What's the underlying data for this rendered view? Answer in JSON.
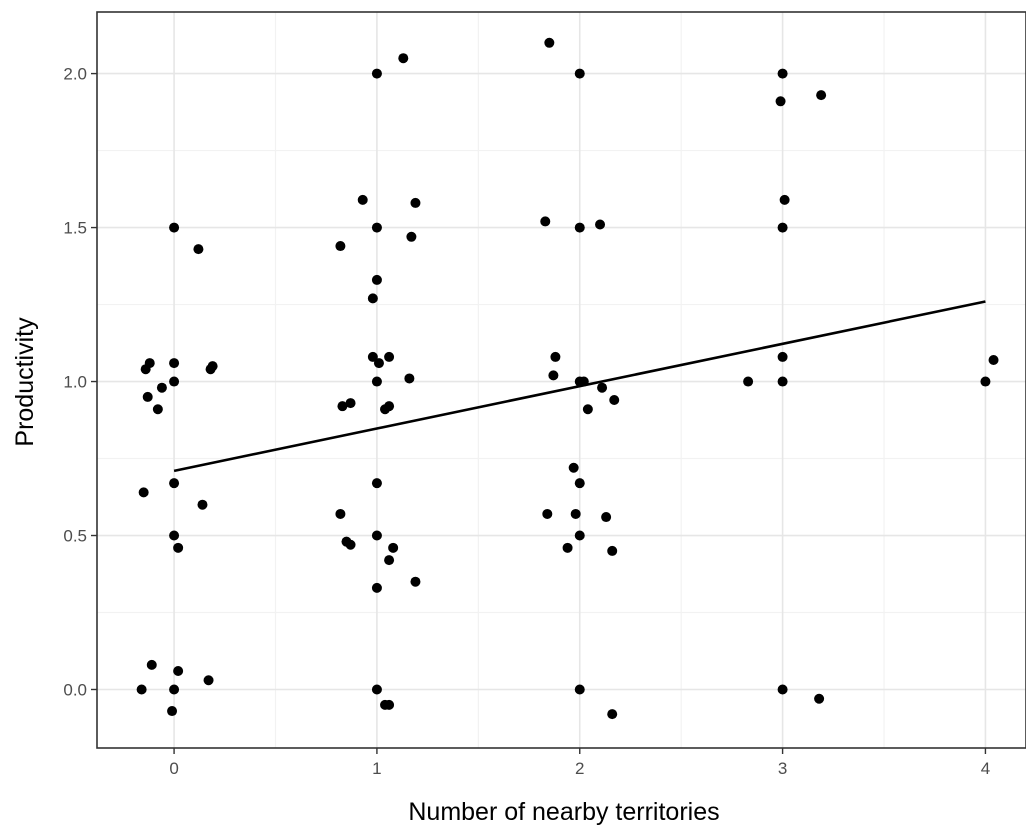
{
  "chart_data": {
    "type": "scatter",
    "title": "",
    "xlabel": "Number of nearby territories",
    "ylabel": "Productivity",
    "xlim": [
      -0.38,
      4.2
    ],
    "ylim": [
      -0.19,
      2.2
    ],
    "x_ticks": [
      0,
      1,
      2,
      3,
      4
    ],
    "x_tick_labels": [
      "0",
      "1",
      "2",
      "3",
      "4"
    ],
    "y_ticks": [
      0.0,
      0.5,
      1.0,
      1.5,
      2.0
    ],
    "y_tick_labels": [
      "0.0",
      "0.5",
      "1.0",
      "1.5",
      "2.0"
    ],
    "grid": true,
    "theme": "bw",
    "point_color": "#000000",
    "points": [
      {
        "x": -0.16,
        "y": 0.0
      },
      {
        "x": -0.15,
        "y": 0.64
      },
      {
        "x": -0.14,
        "y": 1.04
      },
      {
        "x": -0.13,
        "y": 0.95
      },
      {
        "x": -0.12,
        "y": 1.06
      },
      {
        "x": -0.11,
        "y": 0.08
      },
      {
        "x": -0.08,
        "y": 0.91
      },
      {
        "x": -0.06,
        "y": 0.98
      },
      {
        "x": 0.0,
        "y": 1.5
      },
      {
        "x": 0.0,
        "y": 1.06
      },
      {
        "x": 0.0,
        "y": 1.0
      },
      {
        "x": 0.0,
        "y": 0.67
      },
      {
        "x": 0.0,
        "y": 0.5
      },
      {
        "x": 0.0,
        "y": 0.0
      },
      {
        "x": -0.01,
        "y": -0.07
      },
      {
        "x": 0.02,
        "y": 0.46
      },
      {
        "x": 0.02,
        "y": 0.06
      },
      {
        "x": 0.12,
        "y": 1.43
      },
      {
        "x": 0.14,
        "y": 0.6
      },
      {
        "x": 0.17,
        "y": 0.03
      },
      {
        "x": 0.18,
        "y": 1.04
      },
      {
        "x": 0.19,
        "y": 1.05
      },
      {
        "x": 0.82,
        "y": 1.44
      },
      {
        "x": 0.82,
        "y": 0.57
      },
      {
        "x": 0.83,
        "y": 0.92
      },
      {
        "x": 0.85,
        "y": 0.48
      },
      {
        "x": 0.87,
        "y": 0.93
      },
      {
        "x": 0.87,
        "y": 0.47
      },
      {
        "x": 0.93,
        "y": 1.59
      },
      {
        "x": 0.98,
        "y": 1.27
      },
      {
        "x": 0.98,
        "y": 1.08
      },
      {
        "x": 1.0,
        "y": 2.0
      },
      {
        "x": 1.0,
        "y": 1.5
      },
      {
        "x": 1.0,
        "y": 1.33
      },
      {
        "x": 1.0,
        "y": 1.0
      },
      {
        "x": 1.0,
        "y": 0.67
      },
      {
        "x": 1.0,
        "y": 0.5
      },
      {
        "x": 1.0,
        "y": 0.33
      },
      {
        "x": 1.0,
        "y": 0.0
      },
      {
        "x": 1.01,
        "y": 1.06
      },
      {
        "x": 1.04,
        "y": 0.91
      },
      {
        "x": 1.04,
        "y": -0.05
      },
      {
        "x": 1.06,
        "y": 1.08
      },
      {
        "x": 1.06,
        "y": 0.92
      },
      {
        "x": 1.06,
        "y": -0.05
      },
      {
        "x": 1.06,
        "y": 0.42
      },
      {
        "x": 1.08,
        "y": 0.46
      },
      {
        "x": 1.13,
        "y": 2.05
      },
      {
        "x": 1.16,
        "y": 1.01
      },
      {
        "x": 1.17,
        "y": 1.47
      },
      {
        "x": 1.19,
        "y": 1.58
      },
      {
        "x": 1.19,
        "y": 0.35
      },
      {
        "x": 1.83,
        "y": 1.52
      },
      {
        "x": 1.84,
        "y": 0.57
      },
      {
        "x": 1.85,
        "y": 2.1
      },
      {
        "x": 1.87,
        "y": 1.02
      },
      {
        "x": 1.88,
        "y": 1.08
      },
      {
        "x": 1.94,
        "y": 0.46
      },
      {
        "x": 1.97,
        "y": 0.72
      },
      {
        "x": 1.98,
        "y": 0.57
      },
      {
        "x": 2.0,
        "y": 2.0
      },
      {
        "x": 2.0,
        "y": 1.5
      },
      {
        "x": 2.0,
        "y": 1.0
      },
      {
        "x": 2.0,
        "y": 0.67
      },
      {
        "x": 2.0,
        "y": 0.5
      },
      {
        "x": 2.0,
        "y": 0.0
      },
      {
        "x": 2.02,
        "y": 1.0
      },
      {
        "x": 2.04,
        "y": 0.91
      },
      {
        "x": 2.1,
        "y": 1.51
      },
      {
        "x": 2.11,
        "y": 0.98
      },
      {
        "x": 2.13,
        "y": 0.56
      },
      {
        "x": 2.16,
        "y": 0.45
      },
      {
        "x": 2.16,
        "y": -0.08
      },
      {
        "x": 2.17,
        "y": 0.94
      },
      {
        "x": 2.83,
        "y": 1.0
      },
      {
        "x": 2.99,
        "y": 1.91
      },
      {
        "x": 3.0,
        "y": 2.0
      },
      {
        "x": 3.0,
        "y": 1.5
      },
      {
        "x": 3.0,
        "y": 1.08
      },
      {
        "x": 3.0,
        "y": 1.0
      },
      {
        "x": 3.0,
        "y": 0.0
      },
      {
        "x": 3.01,
        "y": 1.59
      },
      {
        "x": 3.18,
        "y": -0.03
      },
      {
        "x": 3.19,
        "y": 1.93
      },
      {
        "x": 4.0,
        "y": 1.0
      },
      {
        "x": 4.04,
        "y": 1.07
      }
    ],
    "trend_line": {
      "x": [
        0,
        4
      ],
      "y": [
        0.71,
        1.26
      ],
      "color": "#000000"
    }
  }
}
